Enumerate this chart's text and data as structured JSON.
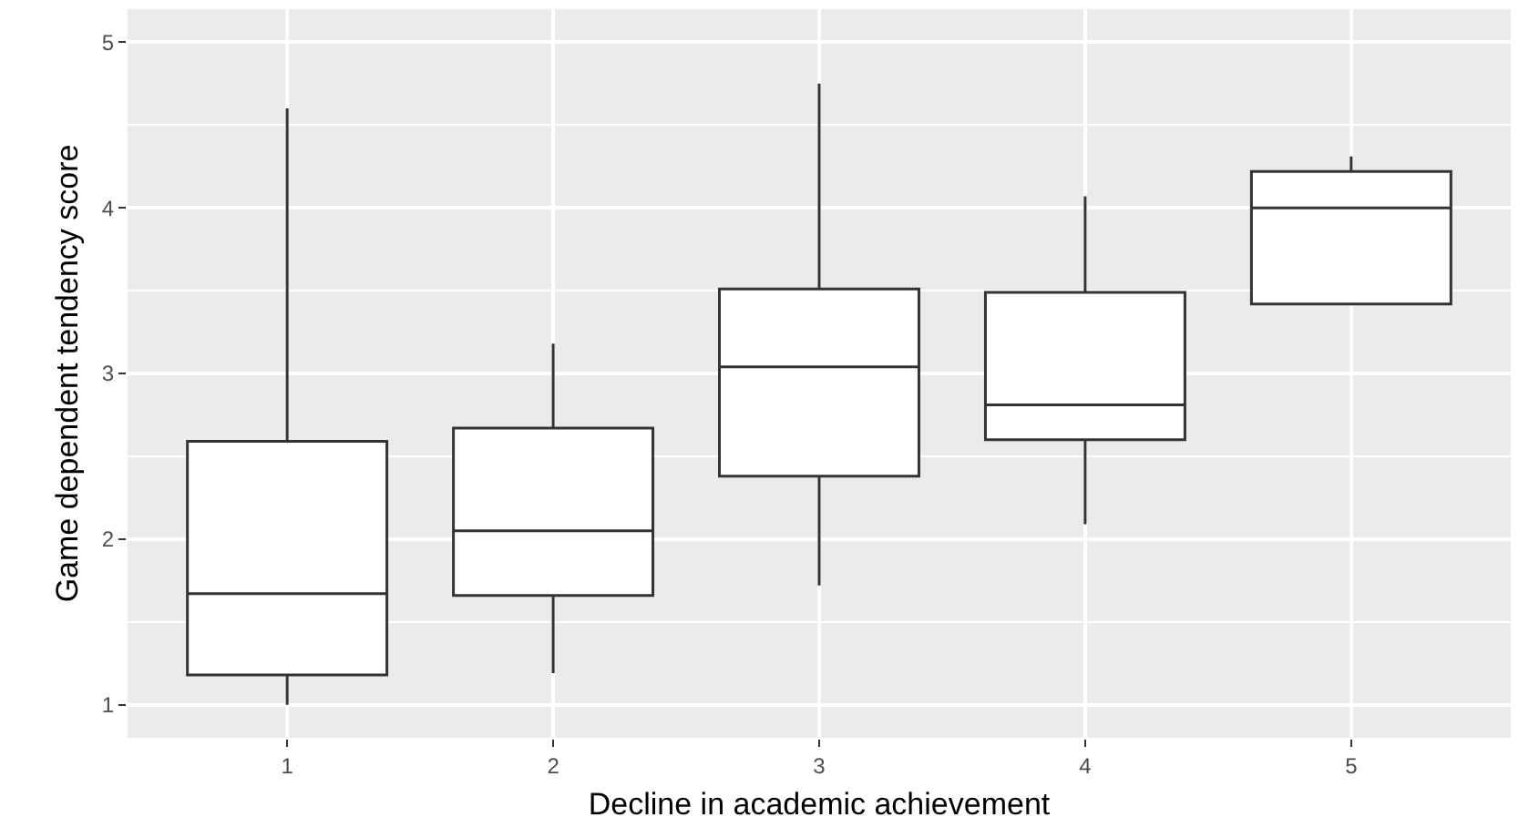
{
  "chart_data": {
    "type": "box",
    "xlabel": "Decline in academic achievement",
    "ylabel": "Game dependent tendency score",
    "categories": [
      "1",
      "2",
      "3",
      "4",
      "5"
    ],
    "boxes": [
      {
        "low": 1.0,
        "q1": 1.18,
        "median": 1.67,
        "q3": 2.59,
        "high": 4.6
      },
      {
        "low": 1.19,
        "q1": 1.66,
        "median": 2.05,
        "q3": 2.67,
        "high": 3.18
      },
      {
        "low": 1.72,
        "q1": 2.38,
        "median": 3.04,
        "q3": 3.51,
        "high": 4.75
      },
      {
        "low": 2.09,
        "q1": 2.6,
        "median": 2.81,
        "q3": 3.49,
        "high": 4.07
      },
      {
        "low": 3.42,
        "q1": 3.42,
        "median": 4.0,
        "q3": 4.22,
        "high": 4.31
      }
    ],
    "ylim": [
      0.8,
      5.2
    ],
    "yticks": [
      1,
      2,
      3,
      4,
      5
    ],
    "grid": true,
    "legend": false
  }
}
